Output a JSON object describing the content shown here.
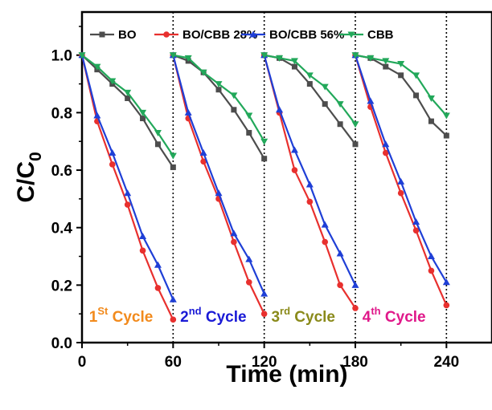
{
  "chart_data": {
    "type": "line",
    "xlabel": "Time (min)",
    "ylabel_main": "C/C",
    "ylabel_sub": "0",
    "xlim": [
      0,
      270
    ],
    "ylim": [
      0,
      1.15
    ],
    "xticks": [
      0,
      60,
      120,
      180,
      240
    ],
    "xtick_labels": [
      "0",
      "60",
      "120",
      "180",
      "240"
    ],
    "yticks": [
      0.0,
      0.2,
      0.4,
      0.6,
      0.8,
      1.0
    ],
    "ytick_labels": [
      "0.0",
      "0.2",
      "0.4",
      "0.6",
      "0.8",
      "1.0"
    ],
    "cycle_dividers": [
      60,
      120,
      180,
      240
    ],
    "legend_position": "top",
    "series": [
      {
        "name": "BO",
        "color": "#4d4d4d",
        "marker": "square",
        "segments": [
          {
            "x": [
              0,
              10,
              20,
              30,
              40,
              50,
              60
            ],
            "y": [
              1.0,
              0.95,
              0.9,
              0.85,
              0.78,
              0.69,
              0.61
            ]
          },
          {
            "x": [
              60,
              70,
              80,
              90,
              100,
              110,
              120
            ],
            "y": [
              1.0,
              0.98,
              0.94,
              0.88,
              0.81,
              0.73,
              0.64
            ]
          },
          {
            "x": [
              120,
              130,
              140,
              150,
              160,
              170,
              180
            ],
            "y": [
              1.0,
              0.99,
              0.96,
              0.9,
              0.83,
              0.76,
              0.69
            ]
          },
          {
            "x": [
              180,
              190,
              200,
              210,
              220,
              230,
              240
            ],
            "y": [
              1.0,
              0.99,
              0.96,
              0.93,
              0.86,
              0.77,
              0.72
            ]
          }
        ]
      },
      {
        "name": "BO/CBB 28%",
        "color": "#e8302e",
        "marker": "circle",
        "segments": [
          {
            "x": [
              0,
              10,
              20,
              30,
              40,
              50,
              60
            ],
            "y": [
              1.0,
              0.77,
              0.62,
              0.48,
              0.32,
              0.19,
              0.08
            ]
          },
          {
            "x": [
              60,
              70,
              80,
              90,
              100,
              110,
              120
            ],
            "y": [
              1.0,
              0.78,
              0.63,
              0.5,
              0.35,
              0.21,
              0.1
            ]
          },
          {
            "x": [
              120,
              130,
              140,
              150,
              160,
              170,
              180
            ],
            "y": [
              1.0,
              0.8,
              0.6,
              0.49,
              0.35,
              0.2,
              0.12
            ]
          },
          {
            "x": [
              180,
              190,
              200,
              210,
              220,
              230,
              240
            ],
            "y": [
              1.0,
              0.82,
              0.66,
              0.52,
              0.39,
              0.25,
              0.13
            ]
          }
        ]
      },
      {
        "name": "BO/CBB 56%",
        "color": "#1f3fd6",
        "marker": "triangle-up",
        "segments": [
          {
            "x": [
              0,
              10,
              20,
              30,
              40,
              50,
              60
            ],
            "y": [
              1.0,
              0.79,
              0.66,
              0.52,
              0.37,
              0.27,
              0.15
            ]
          },
          {
            "x": [
              60,
              70,
              80,
              90,
              100,
              110,
              120
            ],
            "y": [
              1.0,
              0.8,
              0.66,
              0.52,
              0.38,
              0.29,
              0.17
            ]
          },
          {
            "x": [
              120,
              130,
              140,
              150,
              160,
              170,
              180
            ],
            "y": [
              1.0,
              0.81,
              0.67,
              0.55,
              0.41,
              0.31,
              0.2
            ]
          },
          {
            "x": [
              180,
              190,
              200,
              210,
              220,
              230,
              240
            ],
            "y": [
              1.0,
              0.84,
              0.69,
              0.56,
              0.42,
              0.3,
              0.21
            ]
          }
        ]
      },
      {
        "name": "CBB",
        "color": "#22a85a",
        "marker": "triangle-down",
        "segments": [
          {
            "x": [
              0,
              10,
              20,
              30,
              40,
              50,
              60
            ],
            "y": [
              1.0,
              0.96,
              0.91,
              0.87,
              0.8,
              0.73,
              0.65
            ]
          },
          {
            "x": [
              60,
              70,
              80,
              90,
              100,
              110,
              120
            ],
            "y": [
              1.0,
              0.99,
              0.94,
              0.9,
              0.86,
              0.79,
              0.7
            ]
          },
          {
            "x": [
              120,
              130,
              140,
              150,
              160,
              170,
              180
            ],
            "y": [
              1.0,
              0.99,
              0.98,
              0.93,
              0.89,
              0.83,
              0.76
            ]
          },
          {
            "x": [
              180,
              190,
              200,
              210,
              220,
              230,
              240
            ],
            "y": [
              1.0,
              0.99,
              0.98,
              0.97,
              0.93,
              0.85,
              0.79
            ]
          }
        ]
      }
    ],
    "annotations": [
      {
        "main": "1",
        "sup": "St",
        "rest": " Cycle",
        "color": "#f28a1c",
        "x": 2,
        "y": 0.09
      },
      {
        "main": "2",
        "sup": "nd",
        "rest": " Cycle",
        "color": "#1a1ad6",
        "x": 62,
        "y": 0.09
      },
      {
        "main": "3",
        "sup": "rd",
        "rest": " Cycle",
        "color": "#8a8a1a",
        "x": 122,
        "y": 0.09
      },
      {
        "main": "4",
        "sup": "th",
        "rest": " Cycle",
        "color": "#e0188a",
        "x": 182,
        "y": 0.09
      }
    ]
  }
}
